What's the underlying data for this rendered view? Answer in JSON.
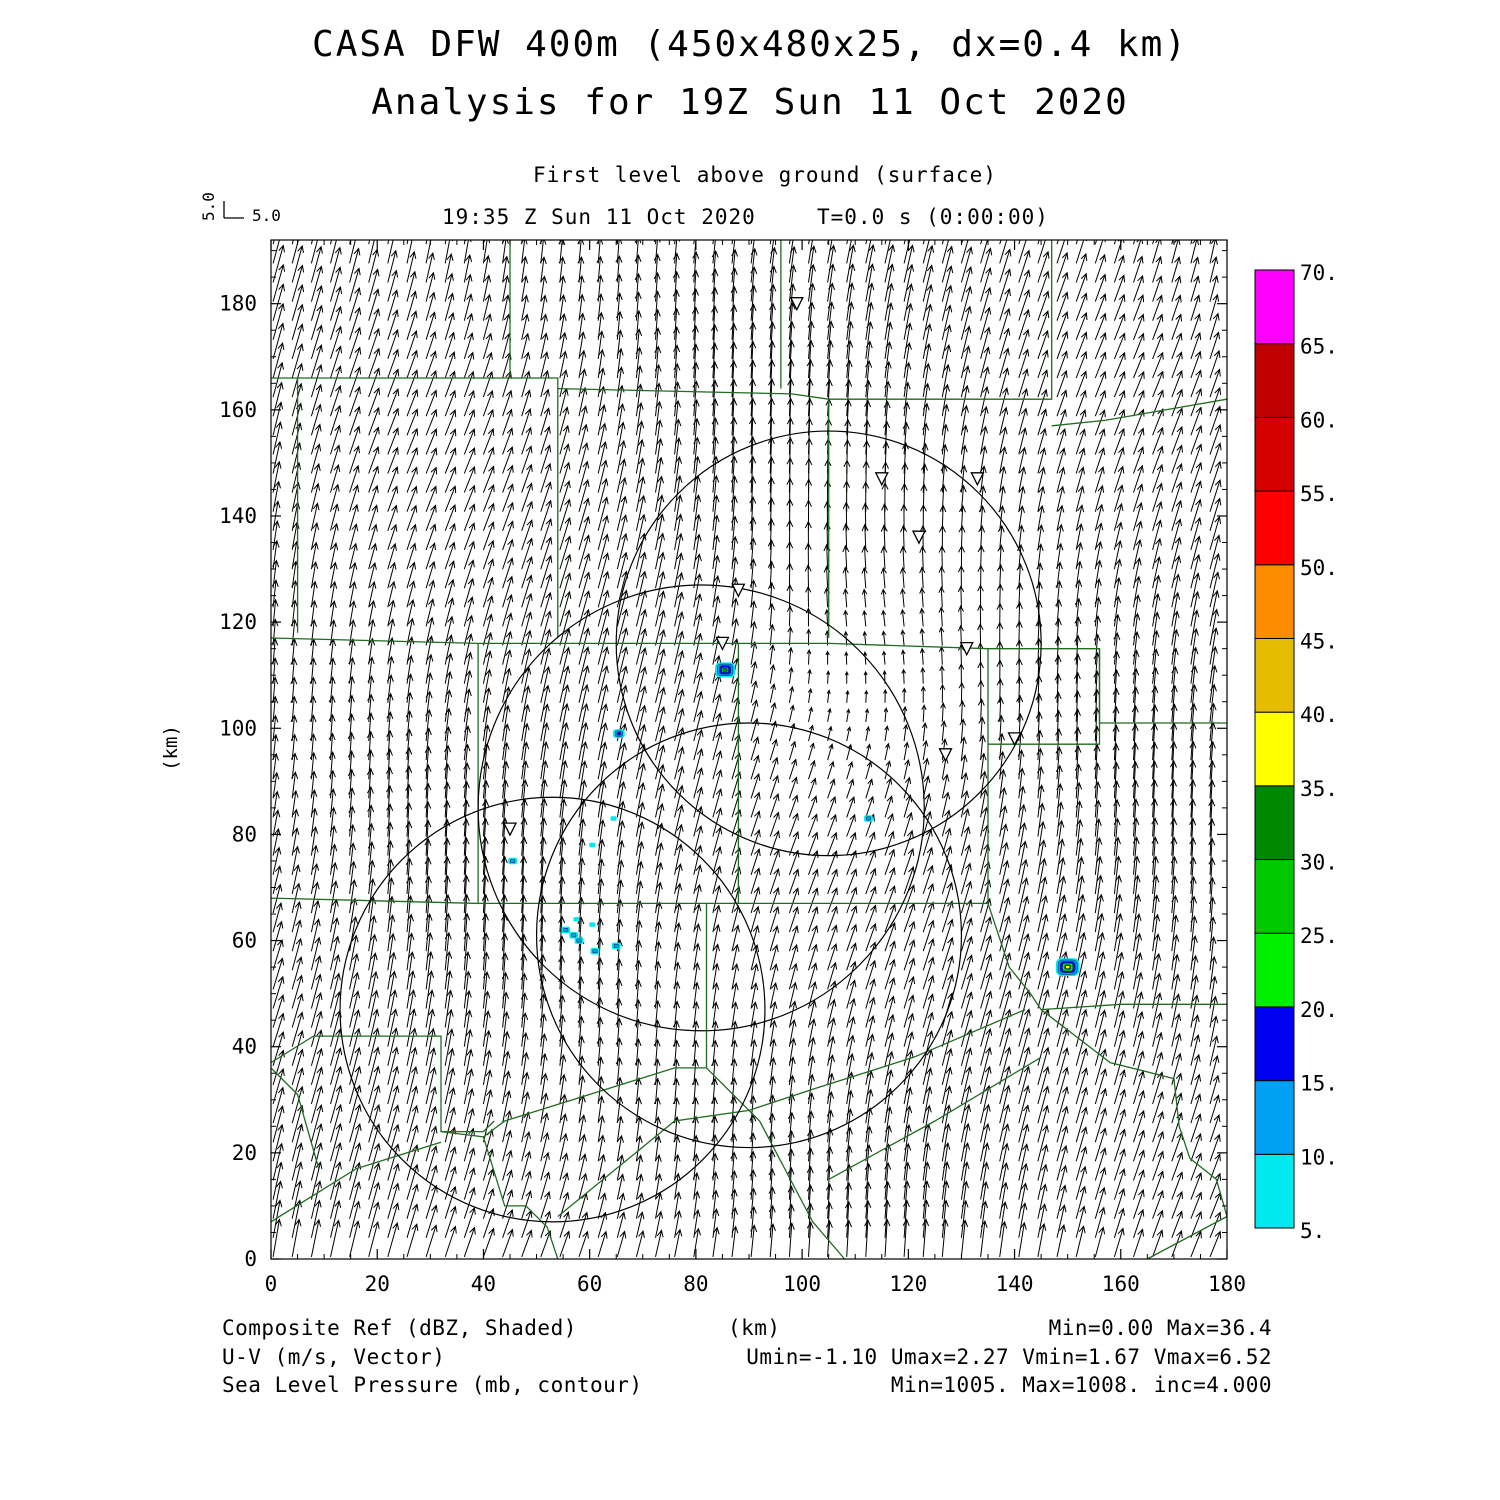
{
  "title": {
    "line1": "CASA DFW 400m (450x480x25, dx=0.4 km)",
    "line2": "Analysis for 19Z Sun 11 Oct 2020"
  },
  "subtitle": {
    "level": "First level above ground (surface)",
    "time": "19:35 Z Sun 11 Oct 2020",
    "elapsed": "T=0.0 s (0:00:00)"
  },
  "vector_key": {
    "u_label": "5.0",
    "v_label": "5.0"
  },
  "colorbar": {
    "labels": [
      "5.",
      "10.",
      "15.",
      "20.",
      "25.",
      "30.",
      "35.",
      "40.",
      "45.",
      "50.",
      "55.",
      "60.",
      "65.",
      "70."
    ],
    "colors": [
      "#00e8f0",
      "#00a0f5",
      "#0000f0",
      "#00ee00",
      "#00c800",
      "#008800",
      "#ffff00",
      "#e6bc00",
      "#ff8c00",
      "#ff0000",
      "#d40000",
      "#c00000",
      "#ff00ff"
    ]
  },
  "footer": {
    "ref_label": "Composite Ref (dBZ, Shaded)",
    "ref_range": "Min=0.00 Max=36.4",
    "x_unit": "(km)",
    "vec_label": "U-V (m/s, Vector)",
    "vec_range": "Umin=-1.10 Umax=2.27 Vmin=1.67 Vmax=6.52",
    "slp_label": "Sea Level Pressure (mb, contour)",
    "slp_range": "Min=1005. Max=1008. inc=4.000"
  },
  "chart_data": {
    "type": "map",
    "xlabel": "(km)",
    "ylabel": "(km)",
    "xlim": [
      0,
      180
    ],
    "ylim": [
      0,
      192
    ],
    "x_ticks": [
      0,
      20,
      40,
      60,
      80,
      100,
      120,
      140,
      160,
      180
    ],
    "y_ticks": [
      0,
      20,
      40,
      60,
      80,
      100,
      120,
      140,
      160,
      180
    ],
    "radar_rings": [
      {
        "cx": 53,
        "cy": 47,
        "r": 40
      },
      {
        "cx": 81,
        "cy": 85,
        "r": 42
      },
      {
        "cx": 90,
        "cy": 61,
        "r": 40
      },
      {
        "cx": 105,
        "cy": 116,
        "r": 40
      }
    ],
    "radar_sites": [
      [
        99,
        180
      ],
      [
        115,
        147
      ],
      [
        133,
        147
      ],
      [
        122,
        136
      ],
      [
        88,
        126
      ],
      [
        85,
        116
      ],
      [
        131,
        115
      ],
      [
        140,
        98
      ],
      [
        127,
        95
      ],
      [
        45,
        81
      ]
    ],
    "county_lines": [
      [
        [
          0,
          166
        ],
        [
          54,
          166
        ],
        [
          54,
          117
        ]
      ],
      [
        [
          5,
          166
        ],
        [
          5,
          118
        ]
      ],
      [
        [
          45,
          192
        ],
        [
          45,
          166
        ]
      ],
      [
        [
          54,
          164
        ],
        [
          98,
          163
        ],
        [
          105,
          162
        ],
        [
          147,
          162
        ],
        [
          147,
          192
        ]
      ],
      [
        [
          96,
          192
        ],
        [
          96,
          164
        ]
      ],
      [
        [
          105,
          162
        ],
        [
          105,
          117
        ]
      ],
      [
        [
          147,
          157
        ],
        [
          157,
          158
        ],
        [
          180,
          162
        ]
      ],
      [
        [
          0,
          117
        ],
        [
          39,
          116
        ],
        [
          54,
          116
        ],
        [
          105,
          116
        ],
        [
          135,
          115
        ],
        [
          156,
          115
        ],
        [
          156,
          101
        ],
        [
          180,
          101
        ]
      ],
      [
        [
          39,
          116
        ],
        [
          39,
          67
        ],
        [
          0,
          68
        ]
      ],
      [
        [
          39,
          67
        ],
        [
          76,
          67
        ],
        [
          128,
          67
        ],
        [
          135,
          67
        ],
        [
          135,
          115
        ]
      ],
      [
        [
          88,
          116
        ],
        [
          88,
          67
        ]
      ],
      [
        [
          135,
          97
        ],
        [
          156,
          97
        ],
        [
          156,
          115
        ]
      ],
      [
        [
          135,
          67
        ],
        [
          139,
          55
        ],
        [
          143,
          50
        ],
        [
          145,
          47
        ],
        [
          160,
          48
        ],
        [
          180,
          48
        ]
      ],
      [
        [
          82,
          67
        ],
        [
          82,
          36
        ],
        [
          76,
          36
        ],
        [
          44,
          26
        ],
        [
          40,
          23
        ]
      ],
      [
        [
          0,
          37
        ],
        [
          8,
          42
        ],
        [
          16,
          42
        ],
        [
          32,
          42
        ],
        [
          32,
          24
        ],
        [
          40,
          24
        ],
        [
          42,
          26
        ]
      ],
      [
        [
          0,
          7
        ],
        [
          16,
          17
        ],
        [
          32,
          22
        ]
      ],
      [
        [
          0,
          36
        ],
        [
          5,
          31
        ],
        [
          9,
          17
        ]
      ],
      [
        [
          32,
          24
        ],
        [
          40,
          23
        ],
        [
          44,
          10
        ],
        [
          48,
          10
        ],
        [
          52,
          6
        ],
        [
          54,
          0
        ]
      ],
      [
        [
          54,
          8
        ],
        [
          76,
          26
        ],
        [
          90,
          28
        ],
        [
          102,
          32
        ],
        [
          121,
          38
        ],
        [
          142,
          47
        ]
      ],
      [
        [
          82,
          36
        ],
        [
          92,
          26
        ],
        [
          102,
          7
        ],
        [
          108,
          0
        ]
      ],
      [
        [
          105,
          15
        ],
        [
          125,
          26
        ],
        [
          145,
          38
        ]
      ],
      [
        [
          145,
          47
        ],
        [
          158,
          37
        ],
        [
          170,
          34
        ],
        [
          171,
          25
        ],
        [
          173,
          19
        ],
        [
          178,
          15
        ],
        [
          180,
          8
        ]
      ],
      [
        [
          165,
          0
        ],
        [
          180,
          8
        ]
      ]
    ],
    "reflectivity_cells": [
      {
        "x": 85.5,
        "y": 111,
        "peak_dbz": 30
      },
      {
        "x": 65.5,
        "y": 99,
        "peak_dbz": 15
      },
      {
        "x": 112.5,
        "y": 83,
        "peak_dbz": 10
      },
      {
        "x": 45.5,
        "y": 75,
        "peak_dbz": 10
      },
      {
        "x": 60.5,
        "y": 78,
        "peak_dbz": 5
      },
      {
        "x": 64.5,
        "y": 83,
        "peak_dbz": 5
      },
      {
        "x": 57,
        "y": 61,
        "peak_dbz": 10
      },
      {
        "x": 55.5,
        "y": 62,
        "peak_dbz": 10
      },
      {
        "x": 58,
        "y": 60,
        "peak_dbz": 10
      },
      {
        "x": 57.5,
        "y": 64,
        "peak_dbz": 5
      },
      {
        "x": 60.5,
        "y": 63,
        "peak_dbz": 5
      },
      {
        "x": 61,
        "y": 58,
        "peak_dbz": 10
      },
      {
        "x": 65,
        "y": 59,
        "peak_dbz": 10
      },
      {
        "x": 150,
        "y": 55,
        "peak_dbz": 36.4
      }
    ],
    "wind_field": {
      "u_range": [
        -1.1,
        2.27
      ],
      "v_range": [
        1.67,
        6.52
      ],
      "grid_spacing_km": 3.6,
      "vector_scale": "5.0 m/s"
    }
  }
}
